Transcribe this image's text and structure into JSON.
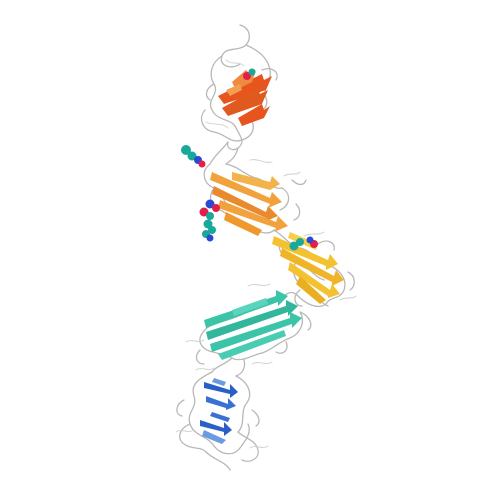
{
  "colors": {
    "background": "#ffffff",
    "coil": "#b8b8b8",
    "domain1": "#e8541e",
    "domain1_light": "#f0a050",
    "domain2": "#f2a23c",
    "domain3": "#f2c230",
    "domain4": "#3cc4a8",
    "domain5": "#2a5fc8",
    "domain5_light": "#6a9ae0",
    "glycan_carbon": "#1aa89a",
    "glycan_oxygen": "#e0204a",
    "glycan_nitrogen": "#2a4ad0"
  }
}
